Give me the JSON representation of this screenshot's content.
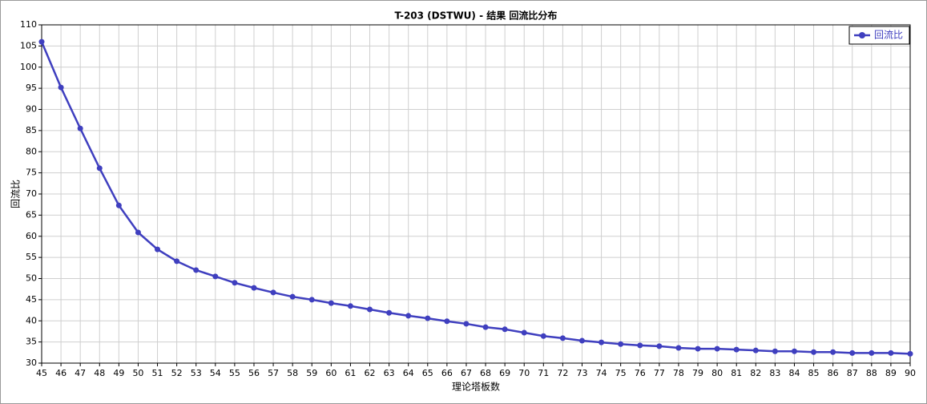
{
  "chart_data": {
    "type": "line",
    "title": "T-203 (DSTWU) - 结果 回流比分布",
    "x_label": "理论塔板数",
    "y_label": "回流比",
    "x": [
      45,
      46,
      47,
      48,
      49,
      50,
      51,
      52,
      53,
      54,
      55,
      56,
      57,
      58,
      59,
      60,
      61,
      62,
      63,
      64,
      65,
      66,
      67,
      68,
      69,
      70,
      71,
      72,
      73,
      74,
      75,
      76,
      77,
      78,
      79,
      80,
      81,
      82,
      83,
      84,
      85,
      86,
      87,
      88,
      89,
      90
    ],
    "series": [
      {
        "name": "回流比",
        "color": "#3f3fbf",
        "values": [
          106.0,
          95.2,
          85.5,
          76.1,
          67.3,
          60.9,
          56.9,
          54.1,
          52.0,
          50.5,
          49.0,
          47.8,
          46.7,
          45.7,
          45.0,
          44.2,
          43.5,
          42.7,
          41.9,
          41.2,
          40.6,
          39.9,
          39.3,
          38.5,
          38.0,
          37.2,
          36.4,
          35.9,
          35.3,
          34.9,
          34.5,
          34.2,
          34.0,
          33.6,
          33.4,
          33.4,
          33.2,
          33.0,
          32.8,
          32.8,
          32.6,
          32.6,
          32.4,
          32.4,
          32.4,
          32.2
        ]
      }
    ],
    "xlim": [
      45,
      90
    ],
    "ylim": [
      30,
      110
    ],
    "xticks": [
      45,
      46,
      47,
      48,
      49,
      50,
      51,
      52,
      53,
      54,
      55,
      56,
      57,
      58,
      59,
      60,
      61,
      62,
      63,
      64,
      65,
      66,
      67,
      68,
      69,
      70,
      71,
      72,
      73,
      74,
      75,
      76,
      77,
      78,
      79,
      80,
      81,
      82,
      83,
      84,
      85,
      86,
      87,
      88,
      89,
      90
    ],
    "yticks": [
      30,
      35,
      40,
      45,
      50,
      55,
      60,
      65,
      70,
      75,
      80,
      85,
      90,
      95,
      100,
      105,
      110
    ],
    "grid": true,
    "legend": "top-right"
  }
}
